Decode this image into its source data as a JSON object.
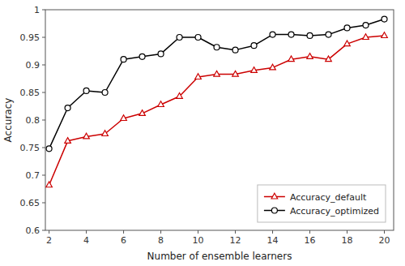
{
  "chart_data": {
    "type": "line",
    "xlabel": "Number of ensemble learners",
    "ylabel": "Accuracy",
    "x": [
      2,
      3,
      4,
      5,
      6,
      7,
      8,
      9,
      10,
      11,
      12,
      13,
      14,
      15,
      16,
      17,
      18,
      19,
      20
    ],
    "series": [
      {
        "name": "Accuracy_default",
        "color": "#cc0000",
        "marker": "triangle",
        "values": [
          0.682,
          0.762,
          0.77,
          0.775,
          0.803,
          0.812,
          0.828,
          0.843,
          0.878,
          0.883,
          0.883,
          0.89,
          0.895,
          0.91,
          0.915,
          0.91,
          0.938,
          0.95,
          0.953
        ]
      },
      {
        "name": "Accuracy_optimized",
        "color": "#000000",
        "marker": "circle",
        "values": [
          0.748,
          0.822,
          0.853,
          0.85,
          0.91,
          0.915,
          0.92,
          0.95,
          0.95,
          0.932,
          0.927,
          0.935,
          0.955,
          0.955,
          0.953,
          0.955,
          0.967,
          0.972,
          0.983
        ]
      }
    ],
    "xlim": [
      1.8,
      20.5
    ],
    "ylim": [
      0.6,
      1
    ],
    "xticks": [
      2,
      4,
      6,
      8,
      10,
      12,
      14,
      16,
      18,
      20
    ],
    "yticks": [
      0.6,
      0.65,
      0.7,
      0.75,
      0.8,
      0.85,
      0.9,
      0.95,
      1
    ],
    "grid": false,
    "legend": "lower right"
  }
}
